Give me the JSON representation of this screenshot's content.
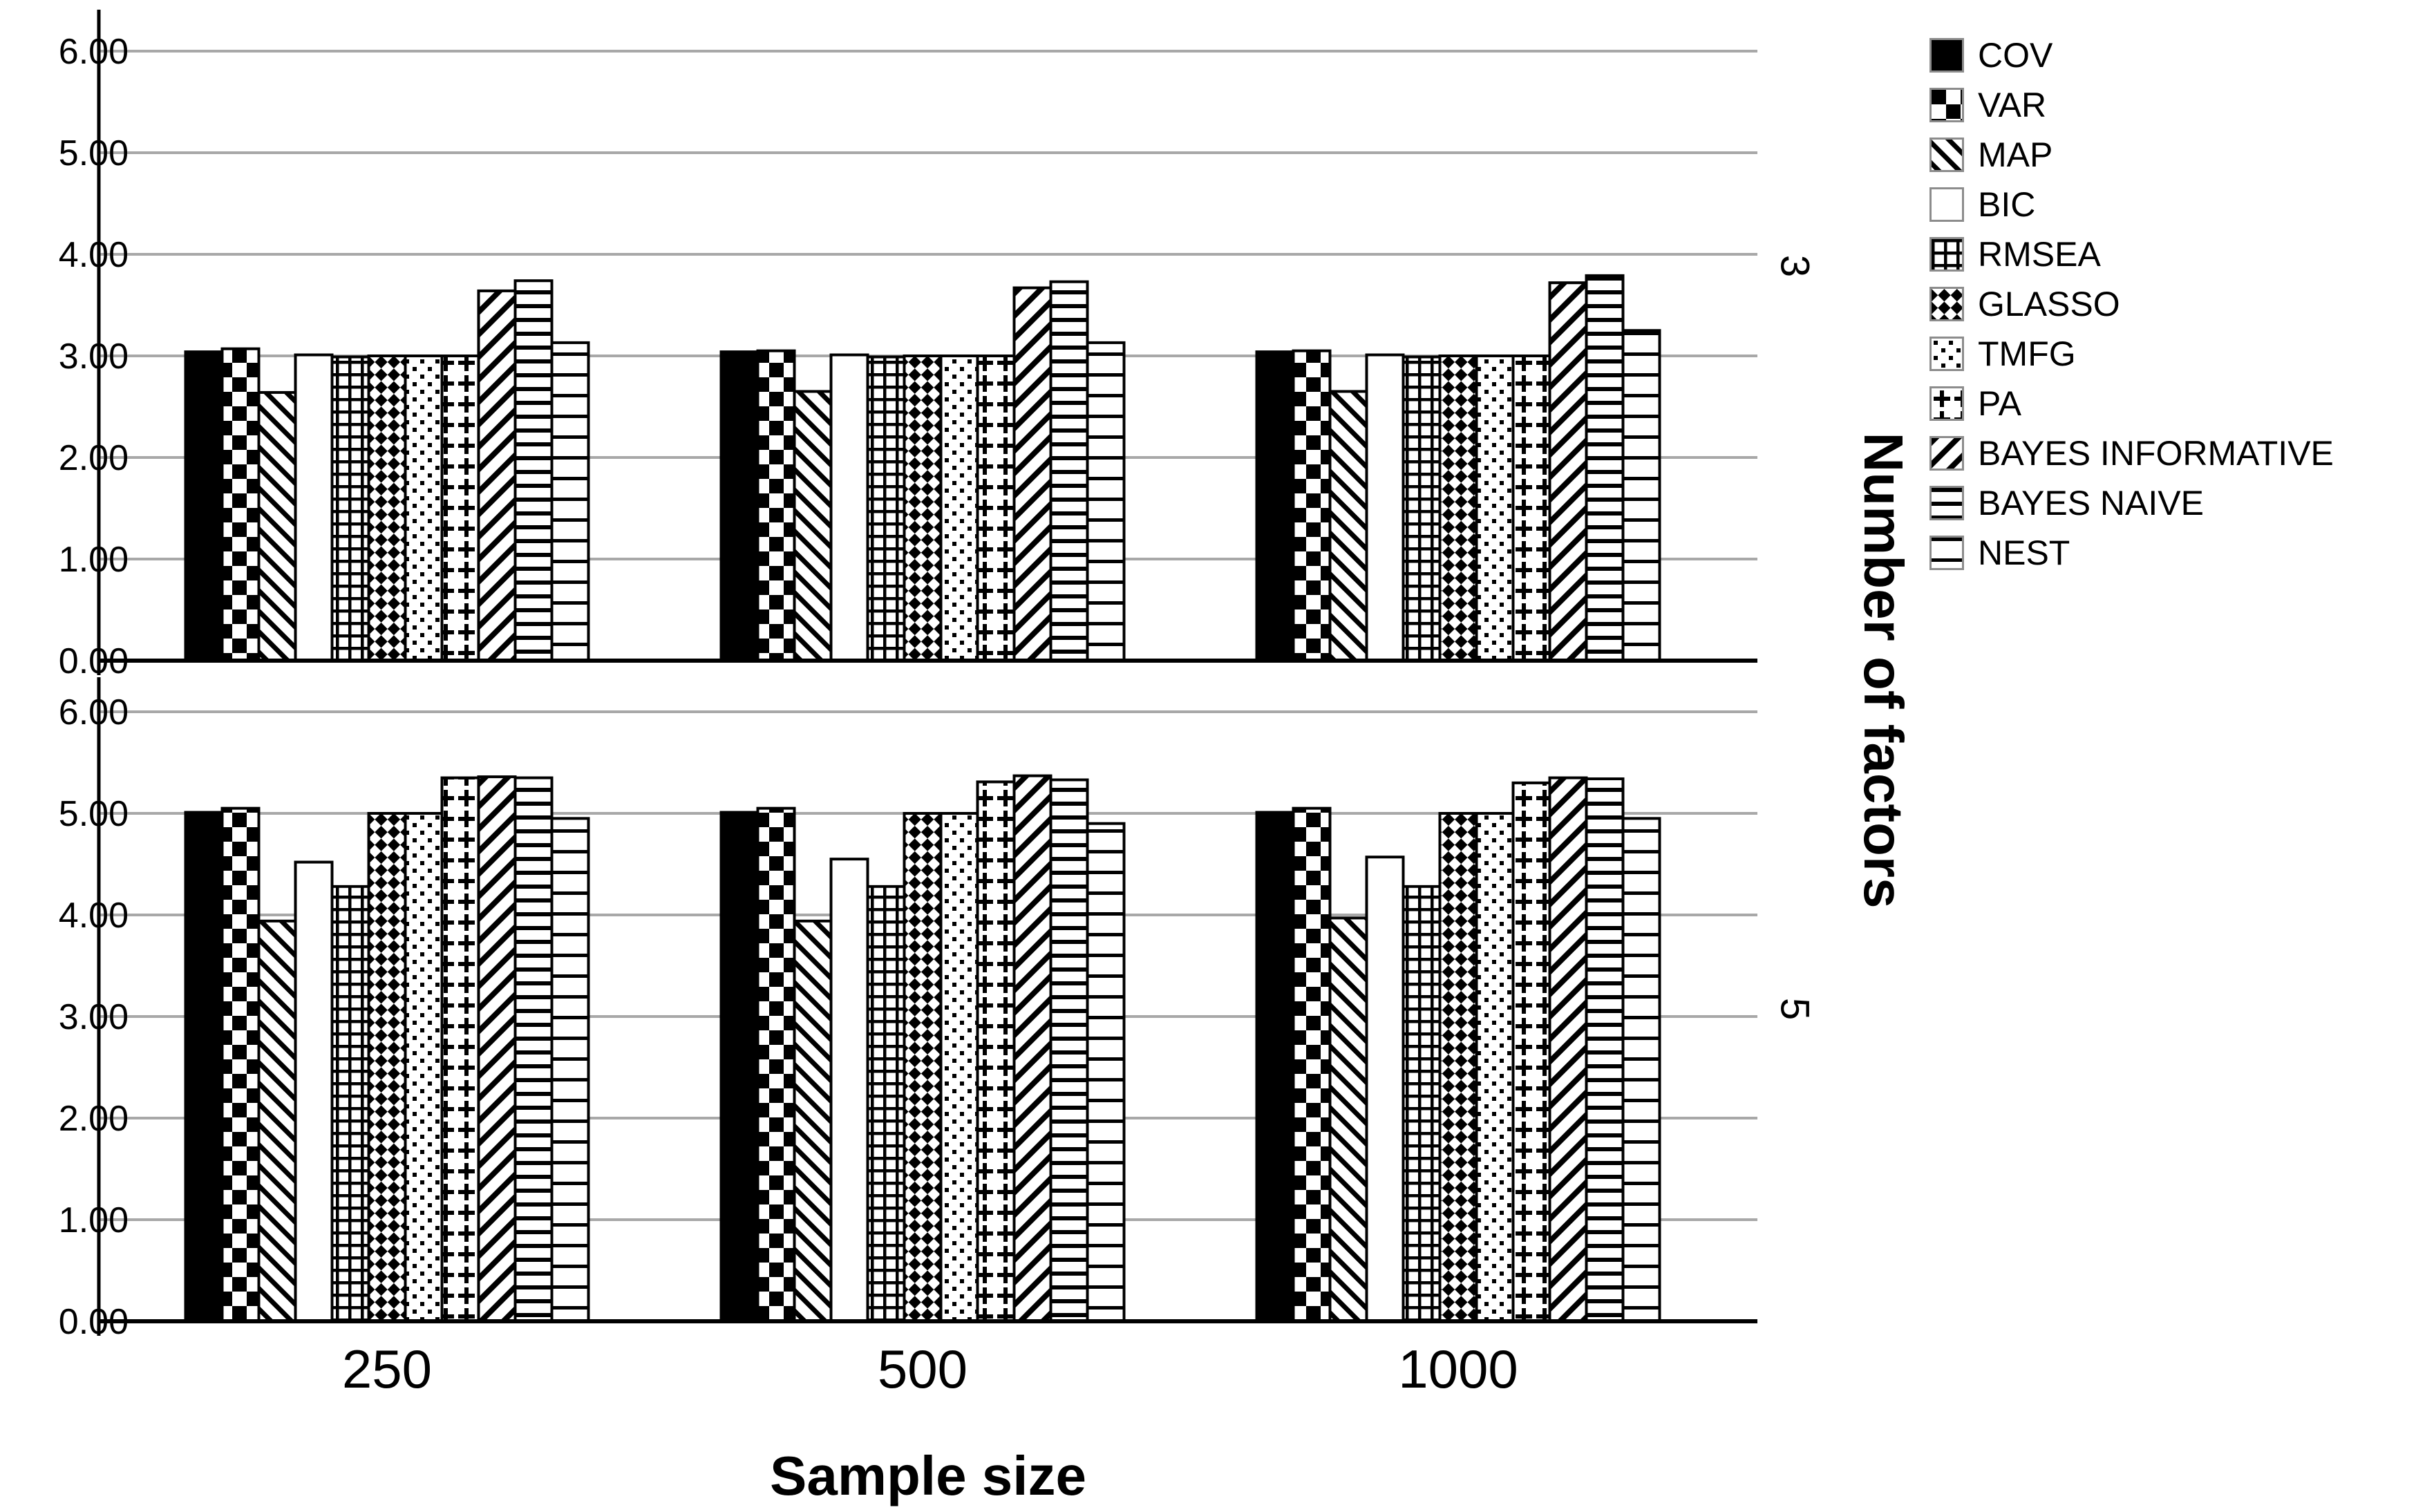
{
  "chart_data": {
    "type": "bar",
    "title": "",
    "xlabel": "Sample size",
    "right_axis_label": "Number of factors",
    "categories": [
      "250",
      "500",
      "1000"
    ],
    "yticks": [
      "0.00",
      "1.00",
      "2.00",
      "3.00",
      "4.00",
      "5.00",
      "6.00"
    ],
    "ylim": [
      0,
      6.4
    ],
    "grid": true,
    "legend_position": "top-right",
    "colors": {
      "background": "#ffffff",
      "gridline": "#a8a8a8",
      "bar_fill_dark": "#000000",
      "bar_fill_light": "#ffffff",
      "bar_outline": "#000000",
      "axis_line": "#000000",
      "legend_swatch_border": "#8c8c8c"
    },
    "series": [
      {
        "name": "COV",
        "pattern": "solid-black"
      },
      {
        "name": "VAR",
        "pattern": "checkerboard"
      },
      {
        "name": "MAP",
        "pattern": "diagonal-backslash"
      },
      {
        "name": "BIC",
        "pattern": "plain-white"
      },
      {
        "name": "RMSEA",
        "pattern": "grid"
      },
      {
        "name": "GLASSO",
        "pattern": "diamond-checker"
      },
      {
        "name": "TMFG",
        "pattern": "dots"
      },
      {
        "name": "PA",
        "pattern": "plus-signs"
      },
      {
        "name": "BAYES INFORMATIVE",
        "pattern": "diagonal-slash"
      },
      {
        "name": "BAYES NAIVE",
        "pattern": "horizontal-stripes-dense"
      },
      {
        "name": "NEST",
        "pattern": "horizontal-stripes-sparse"
      }
    ],
    "facets": [
      {
        "label": "3",
        "groups": [
          {
            "category": "250",
            "values": [
              3.04,
              3.07,
              2.64,
              3.01,
              2.99,
              3.0,
              3.0,
              3.0,
              3.64,
              3.74,
              3.13
            ]
          },
          {
            "category": "500",
            "values": [
              3.04,
              3.05,
              2.65,
              3.01,
              2.99,
              3.0,
              3.0,
              3.0,
              3.67,
              3.73,
              3.13
            ]
          },
          {
            "category": "1000",
            "values": [
              3.04,
              3.05,
              2.65,
              3.01,
              2.99,
              3.0,
              3.0,
              3.0,
              3.72,
              3.79,
              3.25
            ]
          }
        ]
      },
      {
        "label": "5",
        "groups": [
          {
            "category": "250",
            "values": [
              5.01,
              5.05,
              3.94,
              4.52,
              4.28,
              5.0,
              5.0,
              5.35,
              5.36,
              5.35,
              4.95
            ]
          },
          {
            "category": "500",
            "values": [
              5.01,
              5.05,
              3.94,
              4.55,
              4.28,
              5.0,
              5.0,
              5.31,
              5.37,
              5.33,
              4.9
            ]
          },
          {
            "category": "1000",
            "values": [
              5.01,
              5.05,
              3.97,
              4.57,
              4.28,
              5.0,
              5.0,
              5.3,
              5.35,
              5.34,
              4.95
            ]
          }
        ]
      }
    ]
  }
}
